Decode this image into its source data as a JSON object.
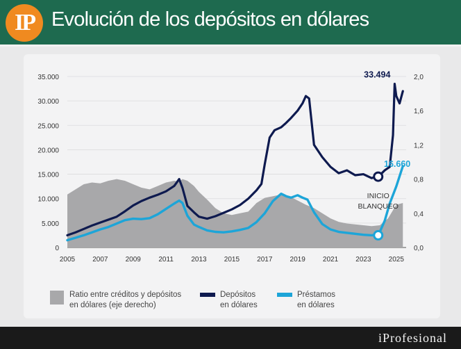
{
  "header": {
    "logo": "IP",
    "title": "Evolución de los depósitos en dólares"
  },
  "footer": {
    "brand": "iProfesional"
  },
  "chart_data": {
    "type": "line",
    "xlim": [
      2005,
      2025.6
    ],
    "ylim_left": [
      0,
      35000
    ],
    "ylim_right": [
      0,
      2.0
    ],
    "x_ticks": [
      2005,
      2007,
      2009,
      2011,
      2013,
      2015,
      2017,
      2019,
      2021,
      2023,
      2025
    ],
    "x_tick_labels": [
      "2005",
      "2007",
      "2009",
      "2011",
      "2013",
      "2015",
      "2017",
      "2019",
      "2021",
      "2023",
      "2025"
    ],
    "y_ticks_left": [
      0,
      5000,
      10000,
      15000,
      20000,
      25000,
      30000,
      35000
    ],
    "y_tick_labels_left": [
      "0",
      "5.000",
      "10.000",
      "15.000",
      "20.000",
      "25.000",
      "30.000",
      "35.000"
    ],
    "y_ticks_right": [
      0,
      0.4,
      0.8,
      1.2,
      1.6,
      2.0
    ],
    "y_tick_labels_right": [
      "0,0",
      "0,4",
      "0,8",
      "1,2",
      "1,6",
      "2,0"
    ],
    "series": [
      {
        "name": "Ratio entre créditos y depósitos en dólares (eje derecho)",
        "type": "area",
        "axis": "right",
        "color": "#a8a8aa",
        "x": [
          2005,
          2005.5,
          2006,
          2006.5,
          2007,
          2007.5,
          2008,
          2008.5,
          2009,
          2009.5,
          2010,
          2010.5,
          2011,
          2011.5,
          2011.8,
          2012,
          2012.3,
          2012.7,
          2013,
          2013.5,
          2014,
          2014.5,
          2015,
          2015.5,
          2016,
          2016.5,
          2017,
          2017.5,
          2018,
          2018.5,
          2019,
          2019.5,
          2020,
          2020.5,
          2021,
          2021.5,
          2022,
          2022.5,
          2023,
          2023.5,
          2024,
          2024.5,
          2025,
          2025.4
        ],
        "values": [
          0.62,
          0.68,
          0.74,
          0.76,
          0.75,
          0.78,
          0.8,
          0.78,
          0.74,
          0.7,
          0.68,
          0.72,
          0.76,
          0.78,
          0.77,
          0.8,
          0.78,
          0.72,
          0.65,
          0.56,
          0.46,
          0.4,
          0.38,
          0.4,
          0.42,
          0.52,
          0.58,
          0.6,
          0.62,
          0.6,
          0.55,
          0.5,
          0.46,
          0.4,
          0.34,
          0.3,
          0.28,
          0.27,
          0.26,
          0.25,
          0.26,
          0.34,
          0.5,
          0.52
        ]
      },
      {
        "name": "Depósitos en dólares",
        "type": "line",
        "axis": "left",
        "color": "#0e1a4f",
        "x": [
          2005,
          2005.5,
          2006,
          2006.5,
          2007,
          2007.5,
          2008,
          2008.5,
          2009,
          2009.5,
          2010,
          2010.5,
          2011,
          2011.5,
          2011.8,
          2012,
          2012.3,
          2012.7,
          2013,
          2013.5,
          2014,
          2014.5,
          2015,
          2015.5,
          2016,
          2016.5,
          2016.8,
          2017,
          2017.3,
          2017.6,
          2018,
          2018.3,
          2018.6,
          2019,
          2019.3,
          2019.5,
          2019.7,
          2020,
          2020.5,
          2021,
          2021.5,
          2022,
          2022.5,
          2023,
          2023.5,
          2023.8,
          2024,
          2024.3,
          2024.6,
          2024.8,
          2024.9,
          2025,
          2025.2,
          2025.4
        ],
        "values": [
          2500,
          3100,
          3800,
          4500,
          5100,
          5700,
          6300,
          7400,
          8600,
          9500,
          10200,
          10800,
          11500,
          12600,
          14000,
          12200,
          8500,
          7200,
          6300,
          5900,
          6400,
          7100,
          7800,
          8700,
          10000,
          11700,
          13000,
          17000,
          22500,
          24000,
          24600,
          25500,
          26500,
          28000,
          29500,
          31000,
          30500,
          21000,
          18500,
          16500,
          15200,
          15800,
          14800,
          15000,
          14200,
          14500,
          14800,
          15800,
          16500,
          23000,
          33494,
          31000,
          29500,
          32000
        ]
      },
      {
        "name": "Préstamos en dólares",
        "type": "line",
        "axis": "left",
        "color": "#1da5d8",
        "x": [
          2005,
          2005.5,
          2006,
          2006.5,
          2007,
          2007.5,
          2008,
          2008.5,
          2009,
          2009.5,
          2010,
          2010.5,
          2011,
          2011.5,
          2011.8,
          2012,
          2012.3,
          2012.7,
          2013,
          2013.5,
          2014,
          2014.5,
          2015,
          2015.5,
          2016,
          2016.5,
          2017,
          2017.5,
          2018,
          2018.3,
          2018.6,
          2019,
          2019.3,
          2019.6,
          2020,
          2020.5,
          2021,
          2021.5,
          2022,
          2022.5,
          2023,
          2023.5,
          2023.8,
          2024,
          2024.3,
          2024.6,
          2025,
          2025.4
        ],
        "values": [
          1500,
          2000,
          2500,
          3100,
          3700,
          4200,
          4900,
          5600,
          5900,
          5800,
          6000,
          6800,
          7900,
          9000,
          9600,
          9100,
          6500,
          4700,
          4200,
          3500,
          3200,
          3100,
          3300,
          3600,
          4000,
          5200,
          7000,
          9500,
          11000,
          10500,
          10200,
          10700,
          10200,
          9800,
          7200,
          4800,
          3700,
          3200,
          3000,
          2800,
          2600,
          2500,
          2600,
          3200,
          5500,
          9000,
          12500,
          16660
        ]
      }
    ],
    "annotations": [
      {
        "text": "33.494",
        "x": 2024.9,
        "y": 33494,
        "color": "#0e1a4f"
      },
      {
        "text": "16.660",
        "x": 2025.4,
        "y": 16660,
        "color": "#1da5d8"
      },
      {
        "text": "INICIO",
        "x": 2023.9,
        "y": 14500
      },
      {
        "text": "BLANQUEO",
        "x": 2023.9,
        "y": 14500
      }
    ],
    "markers": [
      {
        "series": "Depósitos en dólares",
        "x": 2023.9,
        "y": 14500
      },
      {
        "series": "Préstamos en dólares",
        "x": 2023.9,
        "y": 2500
      }
    ],
    "legend": {
      "position": "bottom",
      "items": [
        {
          "line1": "Ratio entre créditos y depósitos",
          "line2": "en dólares (eje derecho)"
        },
        {
          "line1": "Depósitos",
          "line2": "en dólares"
        },
        {
          "line1": "Préstamos",
          "line2": "en dólares"
        }
      ]
    }
  }
}
